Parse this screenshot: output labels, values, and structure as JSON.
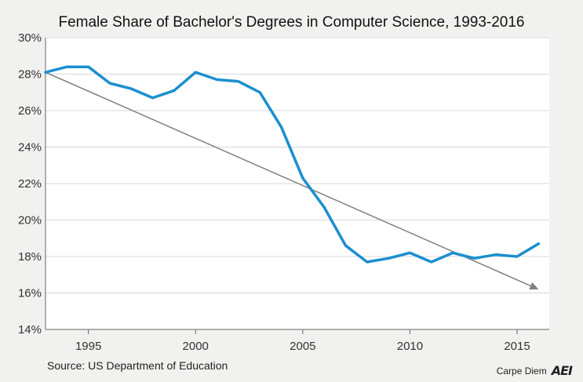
{
  "chart_data": {
    "type": "line",
    "title": "Female Share of Bachelor's Degrees in Computer Science, 1993-2016",
    "source": "Source: US Department of Education",
    "x": [
      1993,
      1994,
      1995,
      1996,
      1997,
      1998,
      1999,
      2000,
      2001,
      2002,
      2003,
      2004,
      2005,
      2006,
      2007,
      2008,
      2009,
      2010,
      2011,
      2012,
      2013,
      2014,
      2015,
      2016
    ],
    "series": [
      {
        "values": [
          28.1,
          28.4,
          28.4,
          27.5,
          27.2,
          26.7,
          27.1,
          28.1,
          27.7,
          27.6,
          27.0,
          25.1,
          22.3,
          20.7,
          18.6,
          17.7,
          17.9,
          18.2,
          17.7,
          18.2,
          17.9,
          18.1,
          18.0,
          18.7
        ],
        "color": "#1b8fcf"
      }
    ],
    "trend": {
      "x": [
        1993,
        2016
      ],
      "y": [
        28.1,
        16.2
      ],
      "color": "#808080"
    },
    "xlim": [
      1993,
      2016.5
    ],
    "ylim": [
      14,
      30
    ],
    "xticks": [
      1995,
      2000,
      2005,
      2010,
      2015
    ],
    "xtick_labels": [
      "1995",
      "2000",
      "2005",
      "2010",
      "2015"
    ],
    "yticks": [
      14,
      16,
      18,
      20,
      22,
      24,
      26,
      28,
      30
    ],
    "ytick_labels": [
      "14%",
      "16%",
      "18%",
      "20%",
      "22%",
      "24%",
      "26%",
      "28%",
      "30%"
    ],
    "grid": true,
    "background": "#ffffff"
  },
  "brand": {
    "name": "Carpe Diem",
    "logo_text": "AEI"
  }
}
